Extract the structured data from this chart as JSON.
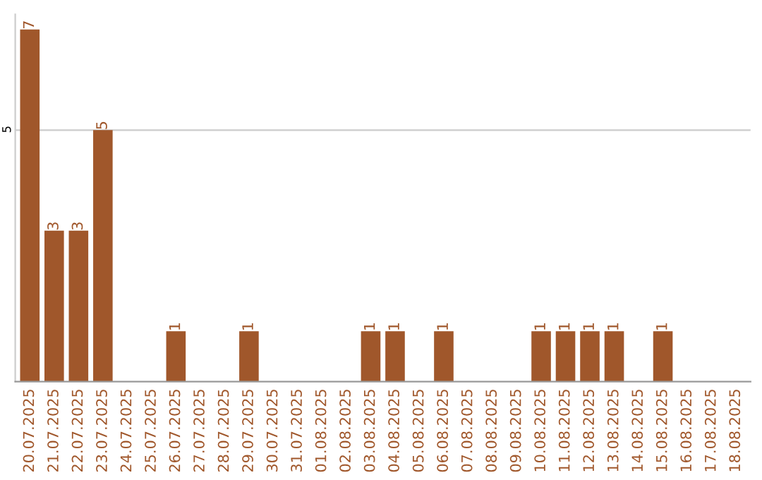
{
  "chart_data": {
    "type": "bar",
    "categories": [
      "20.07.2025",
      "21.07.2025",
      "22.07.2025",
      "23.07.2025",
      "24.07.2025",
      "25.07.2025",
      "26.07.2025",
      "27.07.2025",
      "28.07.2025",
      "29.07.2025",
      "30.07.2025",
      "31.07.2025",
      "01.08.2025",
      "02.08.2025",
      "03.08.2025",
      "04.08.2025",
      "05.08.2025",
      "06.08.2025",
      "07.08.2025",
      "08.08.2025",
      "09.08.2025",
      "10.08.2025",
      "11.08.2025",
      "12.08.2025",
      "13.08.2025",
      "14.08.2025",
      "15.08.2025",
      "16.08.2025",
      "17.08.2025",
      "18.08.2025"
    ],
    "values": [
      7,
      3,
      3,
      5,
      null,
      null,
      1,
      null,
      null,
      1,
      null,
      null,
      null,
      null,
      1,
      1,
      null,
      1,
      null,
      null,
      null,
      1,
      1,
      1,
      1,
      null,
      1,
      null,
      null,
      null
    ],
    "color": "#a0572b",
    "ylim": [
      0,
      7.3
    ],
    "yticks": [
      5
    ],
    "grid": "y",
    "data_labels": true
  }
}
